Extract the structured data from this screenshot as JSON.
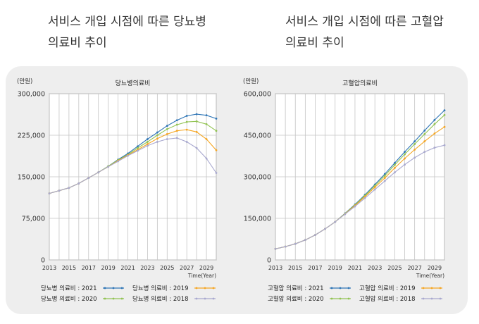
{
  "headings": [
    {
      "line1": "서비스 개입 시점에 따른 당뇨병",
      "line2": "의료비 추이"
    },
    {
      "line1": "서비스 개입 시점에 따른 고혈압",
      "line2": "의료비 추이"
    }
  ],
  "chart_data": [
    {
      "type": "line",
      "title": "당뇨병의료비",
      "unit_label": "(만원)",
      "xlabel": "Time(Year)",
      "x": [
        2013,
        2014,
        2015,
        2016,
        2017,
        2018,
        2019,
        2020,
        2021,
        2022,
        2023,
        2024,
        2025,
        2026,
        2027,
        2028,
        2029,
        2030
      ],
      "xticks": [
        "2013",
        "2015",
        "2017",
        "2019",
        "2021",
        "2023",
        "2025",
        "2027",
        "2029"
      ],
      "yticks": [
        "0",
        "75,000",
        "150,000",
        "225,000",
        "300,000"
      ],
      "ylim": [
        0,
        300000
      ],
      "grid": true,
      "legend_position": "bottom",
      "series": [
        {
          "name": "당뇨병 의료비 : 2021",
          "color": "#2e75b6",
          "values": [
            120000,
            125000,
            130000,
            138000,
            148000,
            158000,
            169000,
            181000,
            192000,
            205000,
            218000,
            230000,
            242000,
            252000,
            260000,
            263000,
            261000,
            255000
          ]
        },
        {
          "name": "당뇨병 의료비 : 2020",
          "color": "#92c353",
          "values": [
            120000,
            125000,
            130000,
            138000,
            148000,
            158000,
            169000,
            180000,
            190000,
            202000,
            213000,
            225000,
            236000,
            244000,
            249000,
            250000,
            245000,
            233000
          ]
        },
        {
          "name": "당뇨병 의료비 : 2019",
          "color": "#f5a623",
          "values": [
            120000,
            125000,
            130000,
            138000,
            148000,
            158000,
            168000,
            179000,
            189000,
            199000,
            209000,
            219000,
            227000,
            233000,
            235000,
            231000,
            218000,
            198000
          ]
        },
        {
          "name": "당뇨병 의료비 : 2018",
          "color": "#a9a9cf",
          "values": [
            120000,
            125000,
            130000,
            138000,
            148000,
            158000,
            168000,
            178000,
            188000,
            197000,
            206000,
            213000,
            218000,
            220000,
            213000,
            202000,
            183000,
            157000
          ]
        }
      ]
    },
    {
      "type": "line",
      "title": "고혈압의료비",
      "unit_label": "(만원)",
      "xlabel": "Time(Year)",
      "x": [
        2013,
        2014,
        2015,
        2016,
        2017,
        2018,
        2019,
        2020,
        2021,
        2022,
        2023,
        2024,
        2025,
        2026,
        2027,
        2028,
        2029,
        2030
      ],
      "xticks": [
        "2013",
        "2015",
        "2017",
        "2019",
        "2021",
        "2023",
        "2025",
        "2027",
        "2029"
      ],
      "yticks": [
        "0",
        "150,000",
        "300,000",
        "450,000",
        "600,000"
      ],
      "ylim": [
        0,
        600000
      ],
      "grid": true,
      "legend_position": "bottom",
      "series": [
        {
          "name": "고혈압 의료비 : 2021",
          "color": "#2e75b6",
          "values": [
            40000,
            48000,
            58000,
            72000,
            90000,
            112000,
            137000,
            168000,
            200000,
            235000,
            272000,
            310000,
            350000,
            390000,
            428000,
            467000,
            505000,
            540000
          ]
        },
        {
          "name": "고혈압 의료비 : 2020",
          "color": "#92c353",
          "values": [
            40000,
            48000,
            58000,
            72000,
            90000,
            112000,
            137000,
            167000,
            198000,
            232000,
            268000,
            304000,
            343000,
            381000,
            418000,
            454000,
            490000,
            523000
          ]
        },
        {
          "name": "고혈압 의료비 : 2019",
          "color": "#f5a623",
          "values": [
            40000,
            48000,
            58000,
            72000,
            90000,
            112000,
            137000,
            166000,
            196000,
            228000,
            262000,
            296000,
            332000,
            366000,
            398000,
            428000,
            456000,
            480000
          ]
        },
        {
          "name": "고혈압 의료비 : 2018",
          "color": "#a9a9cf",
          "values": [
            40000,
            48000,
            58000,
            72000,
            90000,
            112000,
            137000,
            165000,
            193000,
            223000,
            254000,
            285000,
            316000,
            344000,
            369000,
            390000,
            405000,
            414000
          ]
        }
      ]
    }
  ]
}
